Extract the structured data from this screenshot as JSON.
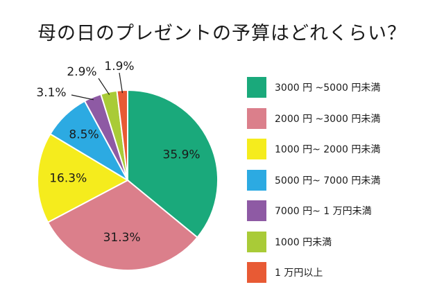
{
  "title": "母の日のプレゼントの予算はどれくらい？",
  "chart_data": {
    "type": "pie",
    "title": "母の日のプレゼントの予算はどれくらい？",
    "slices": [
      {
        "label": "3000 円 ~5000 円未満",
        "value": 35.9,
        "value_label": "35.9%",
        "color": "#1aa97b"
      },
      {
        "label": "2000 円 ~3000 円未満",
        "value": 31.3,
        "value_label": "31.3%",
        "color": "#db7f8b"
      },
      {
        "label": "1000 円~ 2000 円未満",
        "value": 16.3,
        "value_label": "16.3%",
        "color": "#f5ec1d"
      },
      {
        "label": "5000 円~ 7000 円未満",
        "value": 8.5,
        "value_label": "8.5%",
        "color": "#2caae2"
      },
      {
        "label": "7000 円~ 1 万円未満",
        "value": 3.1,
        "value_label": "3.1%",
        "color": "#8e5aa4"
      },
      {
        "label": "1000 円未満",
        "value": 2.9,
        "value_label": "2.9%",
        "color": "#a9cb37"
      },
      {
        "label": "1 万円以上",
        "value": 1.9,
        "value_label": "1.9%",
        "color": "#e85a34"
      }
    ],
    "legend_position": "right",
    "start_angle_deg": 0,
    "direction": "clockwise"
  }
}
